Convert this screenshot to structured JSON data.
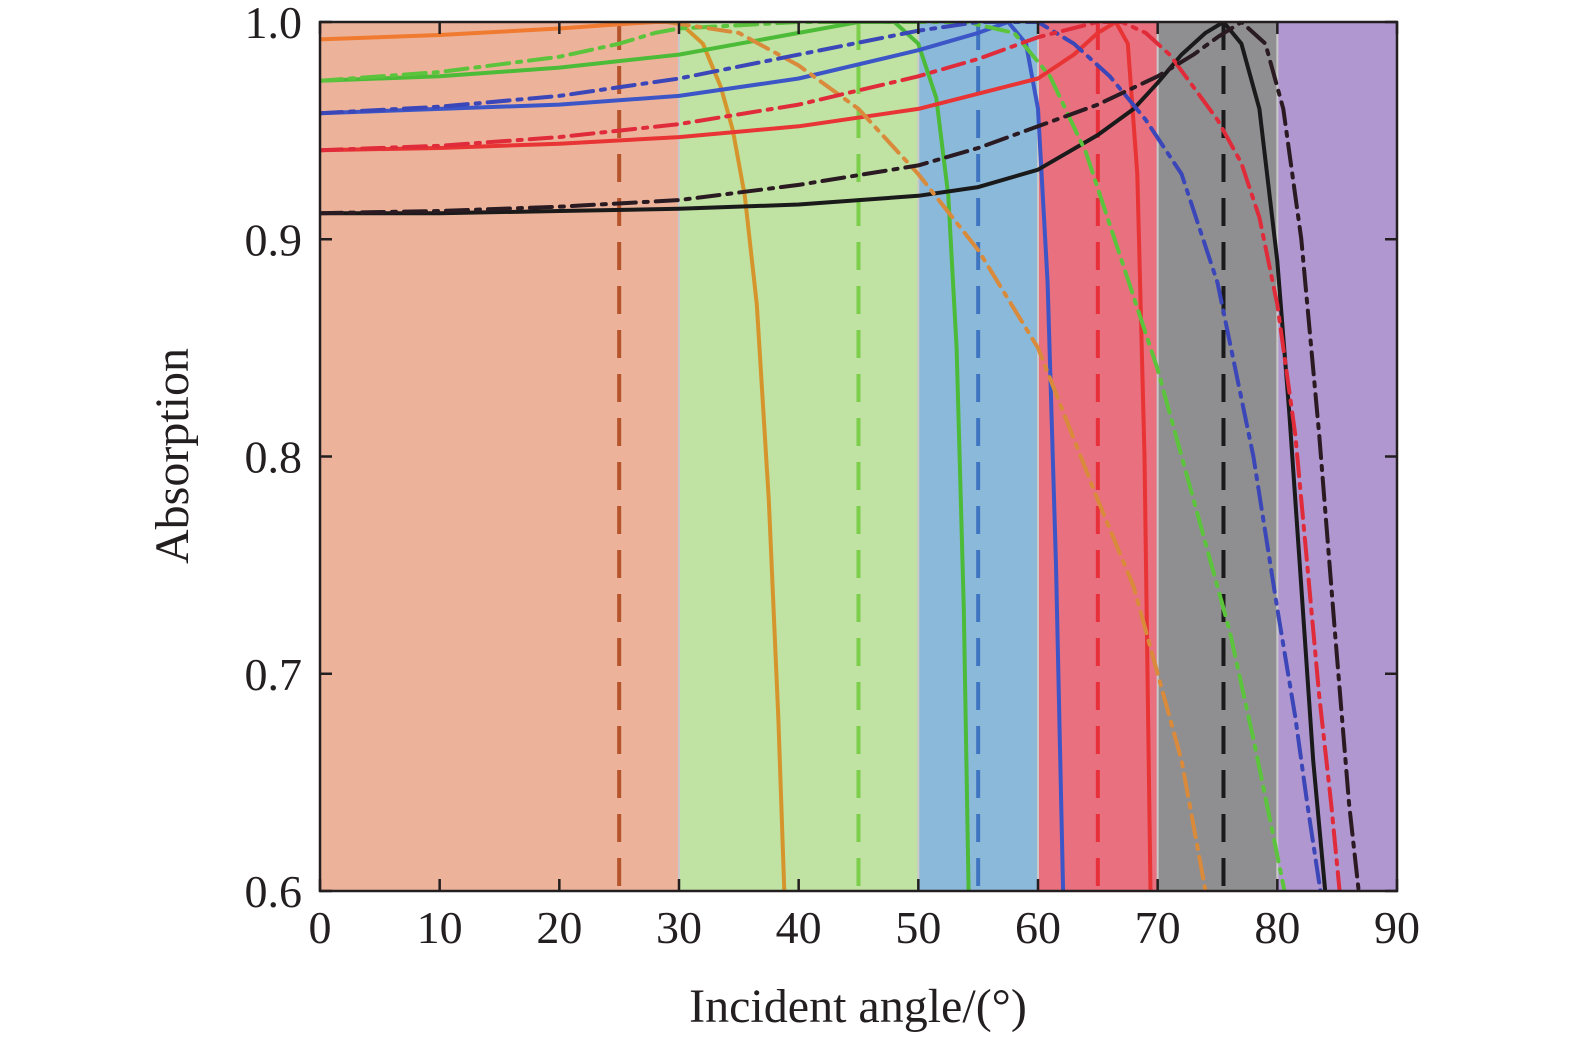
{
  "chart_data": {
    "type": "line",
    "title": "",
    "xlabel": "Incident angle/(°)",
    "ylabel": "Absorption",
    "xlim": [
      0,
      90
    ],
    "ylim": [
      0.6,
      1.0
    ],
    "xticks": [
      0,
      10,
      20,
      30,
      40,
      50,
      60,
      70,
      80,
      90
    ],
    "yticks": [
      0.6,
      0.7,
      0.8,
      0.9,
      1.0
    ],
    "xtick_labels": [
      "0",
      "10",
      "20",
      "30",
      "40",
      "50",
      "60",
      "70",
      "80",
      "90"
    ],
    "ytick_labels": [
      "0.6",
      "0.7",
      "0.8",
      "0.9",
      "1.0"
    ],
    "grid": false,
    "legend": null,
    "bands": [
      {
        "x0": 0,
        "x1": 30,
        "color": "#ecb39a"
      },
      {
        "x0": 30,
        "x1": 50,
        "color": "#c0e2a2"
      },
      {
        "x0": 50,
        "x1": 60,
        "color": "#8bb9da"
      },
      {
        "x0": 60,
        "x1": 70,
        "color": "#e8707f"
      },
      {
        "x0": 70,
        "x1": 80,
        "color": "#8f8f92"
      },
      {
        "x0": 80,
        "x1": 90,
        "color": "#b097cf"
      }
    ],
    "reference_lines": [
      {
        "x": 25,
        "color": "#b5532b"
      },
      {
        "x": 45,
        "color": "#7bcf4b"
      },
      {
        "x": 55,
        "color": "#3f74c0"
      },
      {
        "x": 65,
        "color": "#e8303a"
      },
      {
        "x": 75.5,
        "color": "#1a1a1a"
      }
    ],
    "series": [
      {
        "name": "orange-solid",
        "style": "solid",
        "color": "#f07a30",
        "x": [
          0,
          10,
          20,
          25,
          28,
          30
        ],
        "y": [
          0.992,
          0.994,
          0.997,
          0.999,
          1.0,
          1.0
        ]
      },
      {
        "name": "tan-solid",
        "style": "solid",
        "color": "#d6952c",
        "x": [
          30,
          32,
          33.5,
          34.5,
          35.5,
          36.5,
          37.5,
          38.3,
          38.8
        ],
        "y": [
          1.0,
          0.99,
          0.97,
          0.95,
          0.92,
          0.87,
          0.78,
          0.68,
          0.6
        ]
      },
      {
        "name": "green-solid",
        "style": "solid",
        "color": "#4cbb38",
        "x": [
          0,
          10,
          20,
          30,
          40,
          45,
          48,
          50,
          51.5,
          52.5,
          53.2,
          53.8,
          54.2
        ],
        "y": [
          0.973,
          0.975,
          0.979,
          0.985,
          0.995,
          1.0,
          1.0,
          0.99,
          0.965,
          0.92,
          0.85,
          0.73,
          0.6
        ]
      },
      {
        "name": "blue-solid",
        "style": "solid",
        "color": "#3c56c8",
        "x": [
          0,
          10,
          20,
          30,
          40,
          50,
          55,
          57.5,
          59,
          60,
          60.8,
          61.5,
          62.1
        ],
        "y": [
          0.958,
          0.96,
          0.962,
          0.966,
          0.974,
          0.987,
          0.995,
          1.0,
          0.99,
          0.96,
          0.88,
          0.75,
          0.6
        ]
      },
      {
        "name": "red-solid",
        "style": "solid",
        "color": "#e83434",
        "x": [
          0,
          10,
          20,
          30,
          40,
          50,
          60,
          63,
          65,
          66.5,
          67.5,
          68.3,
          68.9,
          69.4
        ],
        "y": [
          0.941,
          0.942,
          0.944,
          0.947,
          0.952,
          0.96,
          0.974,
          0.985,
          0.995,
          1.0,
          0.99,
          0.93,
          0.8,
          0.6
        ]
      },
      {
        "name": "black-solid",
        "style": "solid",
        "color": "#1a1a1a",
        "x": [
          0,
          10,
          20,
          30,
          40,
          50,
          55,
          60,
          65,
          68,
          70,
          72,
          74,
          75.5,
          77,
          78.5,
          80,
          81,
          82,
          83,
          84
        ],
        "y": [
          0.912,
          0.912,
          0.913,
          0.914,
          0.916,
          0.92,
          0.924,
          0.932,
          0.948,
          0.96,
          0.972,
          0.985,
          0.995,
          1.0,
          0.99,
          0.96,
          0.89,
          0.82,
          0.74,
          0.66,
          0.6
        ]
      },
      {
        "name": "green-dashdot",
        "style": "dashdot",
        "color": "#5cc43c",
        "x": [
          0,
          10,
          20,
          25,
          28,
          30,
          40,
          50,
          54,
          58,
          61,
          64,
          67,
          70,
          73,
          76,
          78,
          79.5,
          80.6
        ],
        "y": [
          0.973,
          0.977,
          0.984,
          0.99,
          0.995,
          0.997,
          1.0,
          1.0,
          1.0,
          0.995,
          0.975,
          0.94,
          0.89,
          0.84,
          0.78,
          0.72,
          0.67,
          0.63,
          0.6
        ]
      },
      {
        "name": "orange-dashdot",
        "style": "dashdot",
        "color": "#d98a3a",
        "x": [
          29,
          35,
          40,
          45,
          50,
          55,
          60,
          65,
          68,
          70,
          72,
          74
        ],
        "y": [
          1.0,
          0.995,
          0.98,
          0.96,
          0.93,
          0.895,
          0.85,
          0.78,
          0.74,
          0.7,
          0.66,
          0.6
        ]
      },
      {
        "name": "blue-dashdot",
        "style": "dashdot",
        "color": "#3b46b8",
        "x": [
          0,
          10,
          20,
          30,
          40,
          50,
          55,
          60,
          63,
          66,
          69,
          72,
          75,
          78,
          80,
          81.5,
          82.5,
          83.6
        ],
        "y": [
          0.958,
          0.961,
          0.966,
          0.974,
          0.985,
          0.996,
          1.0,
          1.0,
          0.99,
          0.975,
          0.955,
          0.93,
          0.88,
          0.8,
          0.73,
          0.68,
          0.64,
          0.6
        ]
      },
      {
        "name": "red-dashdot",
        "style": "dashdot",
        "color": "#e02b3a",
        "x": [
          0,
          10,
          20,
          30,
          40,
          50,
          55,
          60,
          65,
          67,
          69,
          71,
          73,
          75,
          77,
          78.5,
          80,
          81.5,
          82.5,
          83.5,
          84.5,
          85.2
        ],
        "y": [
          0.941,
          0.943,
          0.947,
          0.953,
          0.962,
          0.975,
          0.983,
          0.993,
          1.0,
          1.0,
          0.995,
          0.985,
          0.97,
          0.955,
          0.935,
          0.91,
          0.87,
          0.81,
          0.75,
          0.69,
          0.64,
          0.6
        ]
      },
      {
        "name": "black-dashdot",
        "style": "dashdot",
        "color": "#2a1a22",
        "x": [
          0,
          10,
          20,
          30,
          40,
          50,
          55,
          60,
          65,
          70,
          73,
          75,
          77,
          79,
          80.5,
          82,
          83.5,
          84.8,
          86,
          86.8
        ],
        "y": [
          0.912,
          0.913,
          0.915,
          0.918,
          0.925,
          0.934,
          0.942,
          0.952,
          0.962,
          0.975,
          0.985,
          0.993,
          1.0,
          0.99,
          0.96,
          0.9,
          0.81,
          0.72,
          0.64,
          0.6
        ]
      }
    ]
  }
}
